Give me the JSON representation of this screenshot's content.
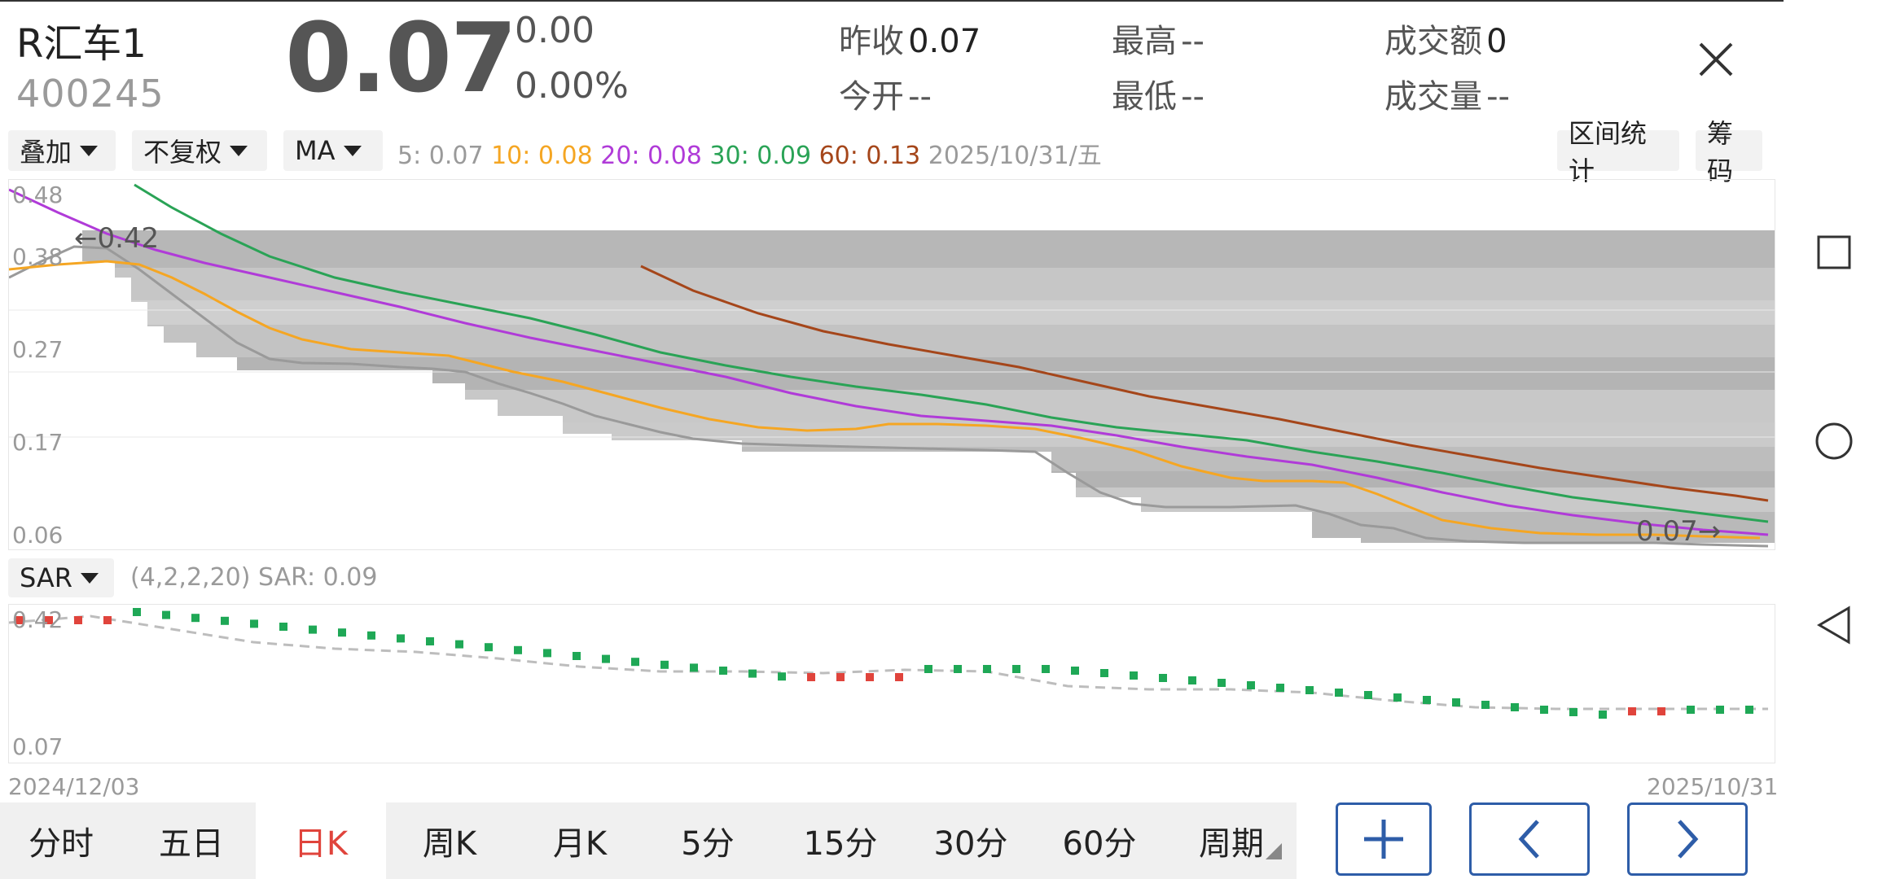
{
  "header": {
    "name": "R汇车1",
    "code": "400245",
    "price": "0.07",
    "change": "0.00",
    "change_pct": "0.00%",
    "stats": {
      "prev_close_label": "昨收",
      "prev_close": "0.07",
      "open_label": "今开",
      "open": "--",
      "high_label": "最高",
      "high": "--",
      "low_label": "最低",
      "low": "--",
      "amount_label": "成交额",
      "amount": "0",
      "volume_label": "成交量",
      "volume": "--"
    }
  },
  "toolbar": {
    "overlay": "叠加",
    "adjust": "不复权",
    "ma": "MA",
    "ma_values": [
      {
        "label": "5: 0.07",
        "color": "#9a9a9a"
      },
      {
        "label": "10: 0.08",
        "color": "#f5a623"
      },
      {
        "label": "20: 0.08",
        "color": "#b03bd8"
      },
      {
        "label": "30: 0.09",
        "color": "#2aa356"
      },
      {
        "label": "60: 0.13",
        "color": "#a5461a"
      }
    ],
    "date": "2025/10/31/五",
    "range_stats": "区间统计",
    "chips": "筹码"
  },
  "main_chart": {
    "y_ticks": [
      "0.48",
      "0.38",
      "0.27",
      "0.17",
      "0.06"
    ],
    "max_marker": "←0.42",
    "last_marker": "0.07→"
  },
  "sar": {
    "label": "SAR",
    "params": "(4,2,2,20) SAR: 0.09",
    "y_top": "0.42",
    "y_bottom": "0.07"
  },
  "x_axis": {
    "start": "2024/12/03",
    "end": "2025/10/31"
  },
  "tabs": [
    "分时",
    "五日",
    "日K",
    "周K",
    "月K",
    "5分",
    "15分",
    "30分",
    "60分",
    "周期"
  ],
  "active_tab": "日K",
  "colors": {
    "ma5": "#9a9a9a",
    "ma10": "#f5a623",
    "ma20": "#b03bd8",
    "ma30": "#2aa356",
    "ma60": "#a5461a",
    "up": "#e0443c",
    "down": "#1fa856",
    "accent": "#2e5da8"
  }
}
